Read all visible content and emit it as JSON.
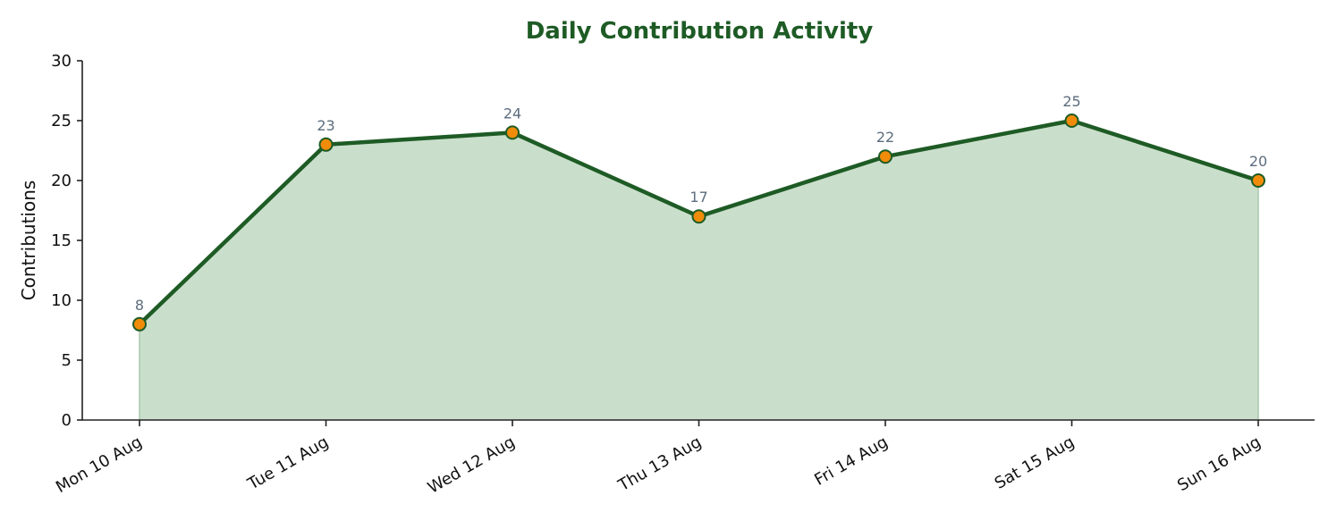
{
  "chart_data": {
    "type": "area",
    "title": "Daily Contribution Activity",
    "xlabel": "",
    "ylabel": "Contributions",
    "categories": [
      "Mon 10 Aug",
      "Tue 11 Aug",
      "Wed 12 Aug",
      "Thu 13 Aug",
      "Fri 14 Aug",
      "Sat 15 Aug",
      "Sun 16 Aug"
    ],
    "series": [
      {
        "values": [
          8,
          23,
          24,
          17,
          22,
          25,
          20
        ]
      }
    ],
    "ylim": [
      0,
      30
    ],
    "yticks": [
      0,
      5,
      10,
      15,
      20,
      25,
      30
    ],
    "grid": false,
    "legend": "none",
    "data_labels": true,
    "colors": {
      "title": "#1e5b25",
      "line": "#1e5b25",
      "fill": "#cadfcb",
      "marker_fill": "#f08c0a",
      "marker_stroke": "#1e5b25",
      "data_label": "#5d6d7e",
      "axis": "#222222"
    }
  }
}
